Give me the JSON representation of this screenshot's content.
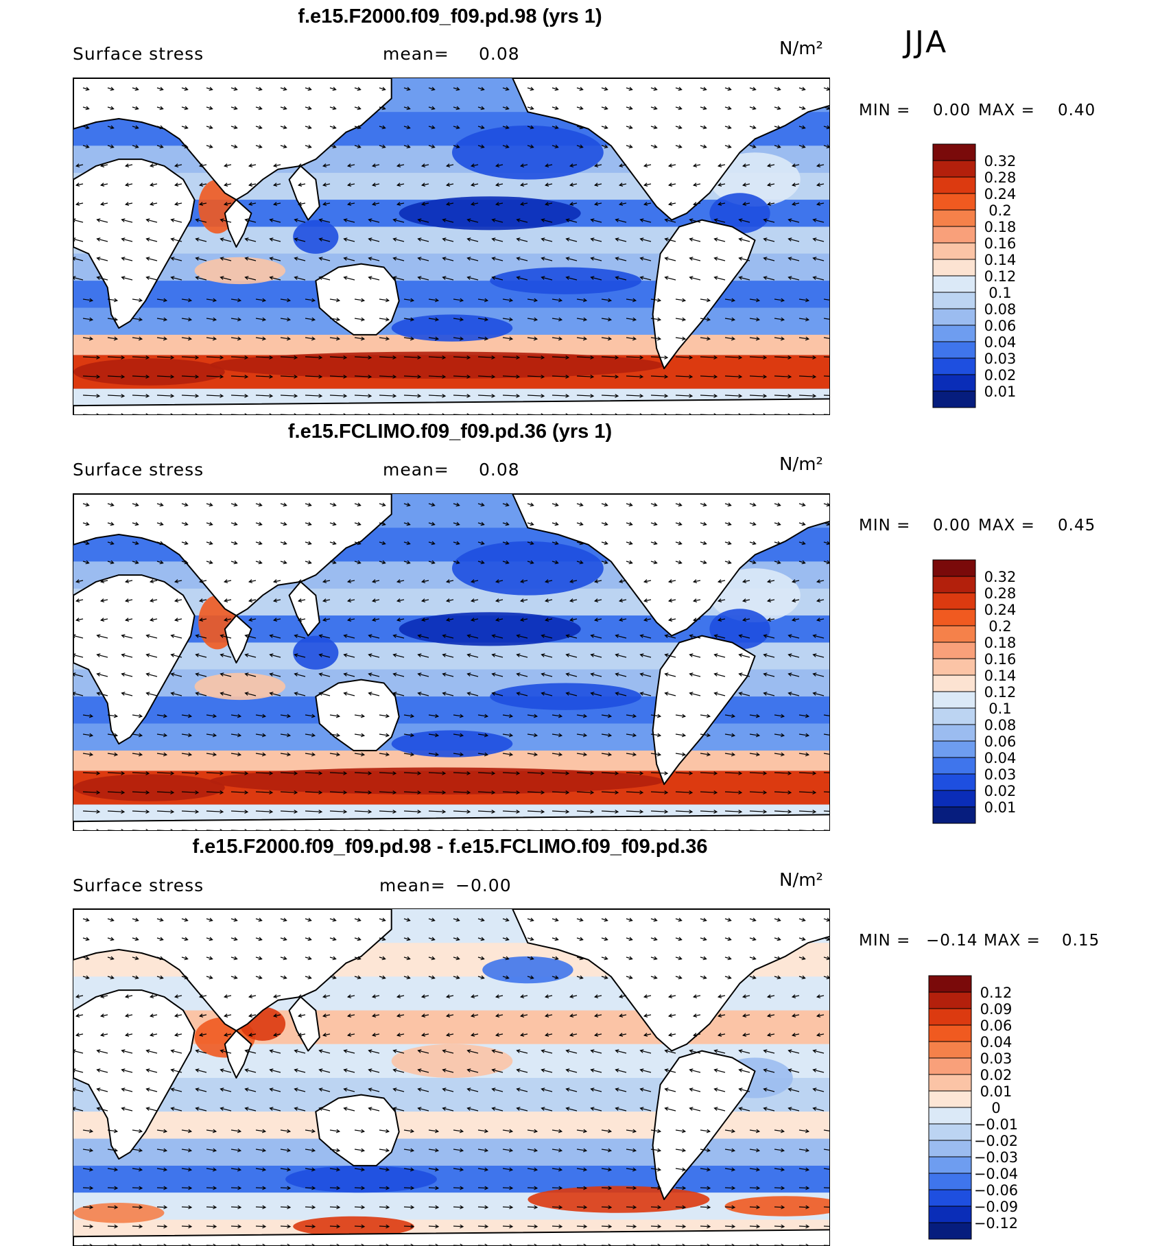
{
  "season": "JJA",
  "chart_data": [
    {
      "type": "heatmap",
      "subtype": "vector-over-filled-contour map",
      "title": "f.e15.F2000.f09_f09.pd.98 (yrs 1)",
      "variable": "Surface stress",
      "mean_label": "mean=",
      "mean": "0.08",
      "units": "N/m²",
      "min_label": "MIN =",
      "min": "0.00",
      "max_label": "MAX =",
      "max": "0.40",
      "colorbar_levels": [
        "0.32",
        "0.28",
        "0.24",
        "0.2",
        "0.18",
        "0.16",
        "0.14",
        "0.12",
        "0.1",
        "0.08",
        "0.06",
        "0.04",
        "0.03",
        "0.02",
        "0.01"
      ],
      "colorbar_colors": [
        "#7a0a0a",
        "#b3200c",
        "#dc3a10",
        "#f05a20",
        "#f5814a",
        "#f9a07a",
        "#fbc4a6",
        "#fce3d2",
        "#dbe9f7",
        "#bcd4f2",
        "#9bbcf0",
        "#6e9df0",
        "#3f75ec",
        "#1e4fe0",
        "#0a2db8",
        "#061d7e"
      ]
    },
    {
      "type": "heatmap",
      "subtype": "vector-over-filled-contour map",
      "title": "f.e15.FCLIMO.f09_f09.pd.36 (yrs 1)",
      "variable": "Surface stress",
      "mean_label": "mean=",
      "mean": "0.08",
      "units": "N/m²",
      "min_label": "MIN =",
      "min": "0.00",
      "max_label": "MAX =",
      "max": "0.45",
      "colorbar_levels": [
        "0.32",
        "0.28",
        "0.24",
        "0.2",
        "0.18",
        "0.16",
        "0.14",
        "0.12",
        "0.1",
        "0.08",
        "0.06",
        "0.04",
        "0.03",
        "0.02",
        "0.01"
      ],
      "colorbar_colors": [
        "#7a0a0a",
        "#b3200c",
        "#dc3a10",
        "#f05a20",
        "#f5814a",
        "#f9a07a",
        "#fbc4a6",
        "#fce3d2",
        "#dbe9f7",
        "#bcd4f2",
        "#9bbcf0",
        "#6e9df0",
        "#3f75ec",
        "#1e4fe0",
        "#0a2db8",
        "#061d7e"
      ]
    },
    {
      "type": "heatmap",
      "subtype": "vector-over-filled-contour map (difference)",
      "title": "f.e15.F2000.f09_f09.pd.98 - f.e15.FCLIMO.f09_f09.pd.36",
      "variable": "Surface stress",
      "mean_label": "mean=",
      "mean": "−0.00",
      "units": "N/m²",
      "min_label": "MIN =",
      "min": "−0.14",
      "max_label": "MAX =",
      "max": "0.15",
      "colorbar_levels": [
        "0.12",
        "0.09",
        "0.06",
        "0.04",
        "0.03",
        "0.02",
        "0.01",
        "0",
        "−0.01",
        "−0.02",
        "−0.03",
        "−0.04",
        "−0.06",
        "−0.09",
        "−0.12"
      ],
      "colorbar_colors": [
        "#7a0a0a",
        "#b3200c",
        "#dc3a10",
        "#f05a20",
        "#f5814a",
        "#f9a07a",
        "#fbc4a6",
        "#fde6d6",
        "#dbe9f7",
        "#bcd4f2",
        "#9bbcf0",
        "#6e9df0",
        "#3f75ec",
        "#1e4fe0",
        "#0a2db8",
        "#061d7e"
      ]
    }
  ]
}
